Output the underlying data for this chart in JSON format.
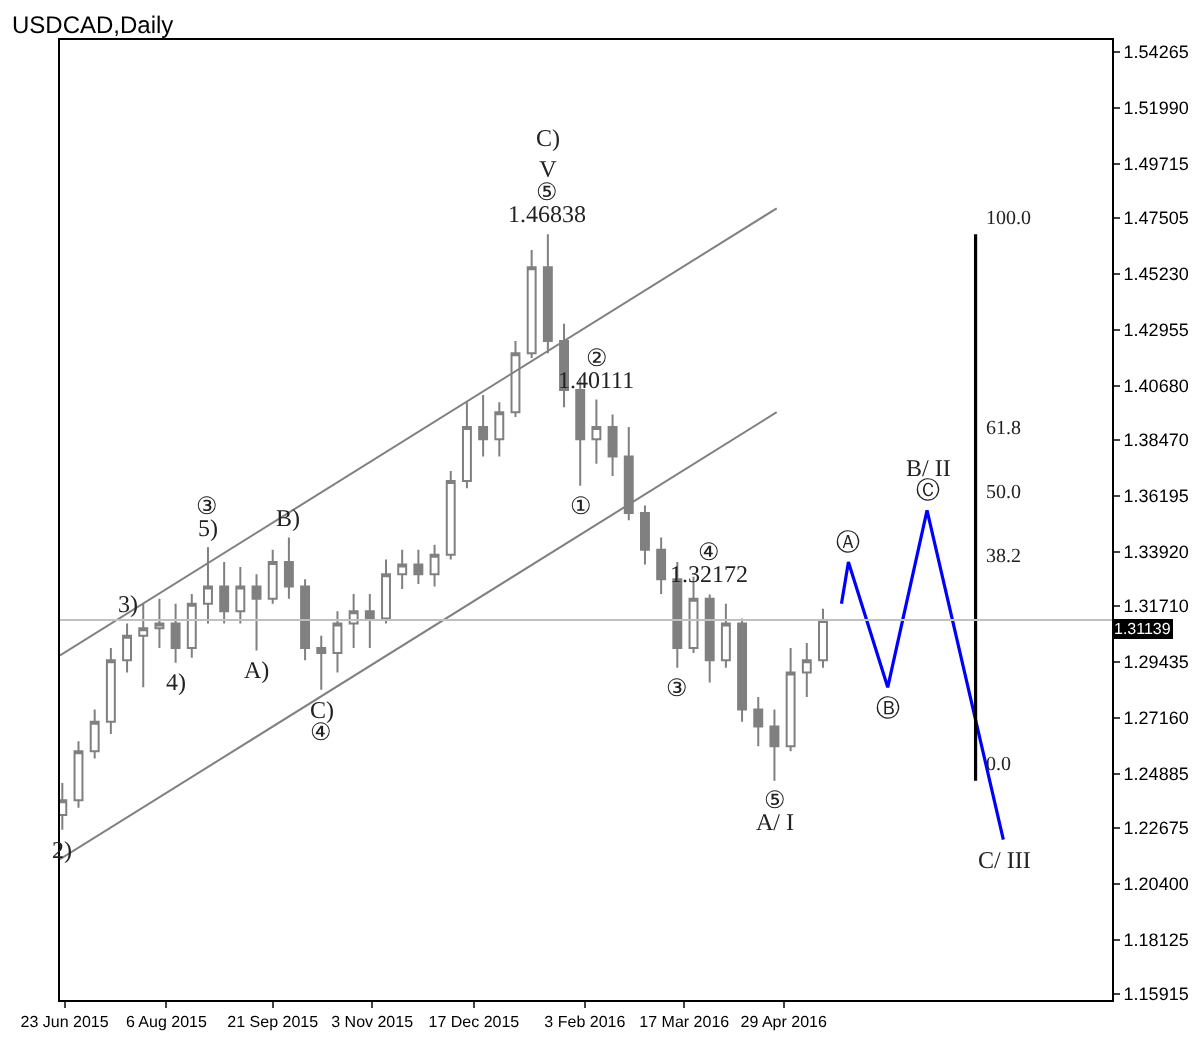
{
  "chart_data": {
    "type": "candlestick",
    "title": "USDCAD,Daily",
    "color": "#808080",
    "grid": false,
    "x": [
      "2015-06-22",
      "2015-06-29",
      "2015-07-06",
      "2015-07-13",
      "2015-07-20",
      "2015-07-27",
      "2015-08-03",
      "2015-08-10",
      "2015-08-17",
      "2015-08-24",
      "2015-08-31",
      "2015-09-07",
      "2015-09-14",
      "2015-09-21",
      "2015-09-28",
      "2015-10-05",
      "2015-10-12",
      "2015-10-19",
      "2015-10-26",
      "2015-11-02",
      "2015-11-09",
      "2015-11-16",
      "2015-11-23",
      "2015-11-30",
      "2015-12-07",
      "2015-12-14",
      "2015-12-21",
      "2015-12-28",
      "2016-01-04",
      "2016-01-11",
      "2016-01-18",
      "2016-01-25",
      "2016-02-01",
      "2016-02-08",
      "2016-02-15",
      "2016-02-22",
      "2016-02-29",
      "2016-03-07",
      "2016-03-14",
      "2016-03-21",
      "2016-03-28",
      "2016-04-04",
      "2016-04-11",
      "2016-04-18",
      "2016-04-25",
      "2016-05-02",
      "2016-05-09",
      "2016-05-16"
    ],
    "ohlc": [
      [
        1.232,
        1.245,
        1.226,
        1.238
      ],
      [
        1.238,
        1.262,
        1.235,
        1.258
      ],
      [
        1.258,
        1.275,
        1.255,
        1.27
      ],
      [
        1.27,
        1.3,
        1.265,
        1.295
      ],
      [
        1.295,
        1.31,
        1.29,
        1.305
      ],
      [
        1.305,
        1.318,
        1.284,
        1.308
      ],
      [
        1.308,
        1.32,
        1.3,
        1.31
      ],
      [
        1.31,
        1.318,
        1.294,
        1.3
      ],
      [
        1.3,
        1.322,
        1.296,
        1.318
      ],
      [
        1.318,
        1.341,
        1.31,
        1.325
      ],
      [
        1.325,
        1.335,
        1.31,
        1.315
      ],
      [
        1.315,
        1.333,
        1.31,
        1.325
      ],
      [
        1.325,
        1.33,
        1.299,
        1.32
      ],
      [
        1.32,
        1.34,
        1.318,
        1.335
      ],
      [
        1.335,
        1.345,
        1.32,
        1.325
      ],
      [
        1.325,
        1.328,
        1.295,
        1.3
      ],
      [
        1.3,
        1.305,
        1.283,
        1.298
      ],
      [
        1.298,
        1.315,
        1.29,
        1.31
      ],
      [
        1.31,
        1.322,
        1.3,
        1.315
      ],
      [
        1.315,
        1.322,
        1.3,
        1.312
      ],
      [
        1.312,
        1.336,
        1.31,
        1.33
      ],
      [
        1.33,
        1.34,
        1.324,
        1.334
      ],
      [
        1.334,
        1.34,
        1.326,
        1.33
      ],
      [
        1.33,
        1.342,
        1.325,
        1.338
      ],
      [
        1.338,
        1.372,
        1.336,
        1.368
      ],
      [
        1.368,
        1.4,
        1.365,
        1.39
      ],
      [
        1.39,
        1.403,
        1.378,
        1.385
      ],
      [
        1.385,
        1.4,
        1.378,
        1.396
      ],
      [
        1.396,
        1.425,
        1.394,
        1.42
      ],
      [
        1.42,
        1.462,
        1.418,
        1.455
      ],
      [
        1.455,
        1.46838,
        1.42,
        1.425
      ],
      [
        1.425,
        1.432,
        1.398,
        1.405
      ],
      [
        1.405,
        1.41,
        1.366,
        1.385
      ],
      [
        1.385,
        1.40111,
        1.375,
        1.39
      ],
      [
        1.39,
        1.395,
        1.37,
        1.378
      ],
      [
        1.378,
        1.39,
        1.352,
        1.355
      ],
      [
        1.355,
        1.358,
        1.334,
        1.34
      ],
      [
        1.34,
        1.345,
        1.322,
        1.328
      ],
      [
        1.328,
        1.335,
        1.292,
        1.3
      ],
      [
        1.3,
        1.329,
        1.298,
        1.32
      ],
      [
        1.32,
        1.32172,
        1.286,
        1.295
      ],
      [
        1.295,
        1.318,
        1.292,
        1.31
      ],
      [
        1.31,
        1.312,
        1.27,
        1.275
      ],
      [
        1.275,
        1.28,
        1.26,
        1.268
      ],
      [
        1.268,
        1.275,
        1.246,
        1.26
      ],
      [
        1.26,
        1.3,
        1.258,
        1.29
      ],
      [
        1.29,
        1.302,
        1.28,
        1.295
      ],
      [
        1.295,
        1.316,
        1.292,
        1.31139
      ]
    ],
    "series": [
      {
        "type": "line",
        "color": "#808080",
        "x": [
          "2015-06-21",
          "2016-04-26"
        ],
        "values": [
          1.297,
          1.479
        ]
      },
      {
        "type": "line",
        "color": "#808080",
        "x": [
          "2015-06-21",
          "2016-04-26"
        ],
        "values": [
          1.214,
          1.396
        ]
      },
      {
        "type": "line",
        "color": "#0000ff",
        "x": [
          "2016-05-24",
          "2016-05-27",
          "2016-06-13",
          "2016-06-30",
          "2016-08-02"
        ],
        "values": [
          1.318,
          1.335,
          1.284,
          1.356,
          1.222
        ]
      },
      {
        "type": "line",
        "color": "#000000",
        "x": [
          "2016-07-21",
          "2016-07-21",
          "2016-07-21",
          "2016-07-21",
          "2016-07-21"
        ],
        "values": [
          1.46838,
          1.3834,
          1.3572,
          1.331,
          1.246
        ]
      }
    ],
    "annotations": [
      {
        "text": "1.46838",
        "x": "2016-01-18",
        "y": 1.46838
      },
      {
        "text": "⑤",
        "x": "2016-01-18",
        "y": 1.46838
      },
      {
        "text": "C)\nV",
        "x": "2016-01-18",
        "y": 1.46838
      },
      {
        "text": "1.40111",
        "x": "2016-02-08",
        "y": 1.40111
      },
      {
        "text": "②",
        "x": "2016-02-08",
        "y": 1.40111
      },
      {
        "text": "①",
        "x": "2016-02-01",
        "y": 1.366
      },
      {
        "text": "1.32172",
        "x": "2016-03-28",
        "y": 1.32172
      },
      {
        "text": "④",
        "x": "2016-03-28",
        "y": 1.32172
      },
      {
        "text": "③",
        "x": "2016-03-14",
        "y": 1.292
      },
      {
        "text": "⑤",
        "x": "2016-04-25",
        "y": 1.246
      },
      {
        "text": "A/ I",
        "x": "2016-04-25",
        "y": 1.246
      },
      {
        "text": "2)",
        "x": "2015-06-22",
        "y": 1.226
      },
      {
        "text": "3)",
        "x": "2015-07-20",
        "y": 1.31
      },
      {
        "text": "5)",
        "x": "2015-08-24",
        "y": 1.341
      },
      {
        "text": "③",
        "x": "2015-08-24",
        "y": 1.341
      },
      {
        "text": "4)",
        "x": "2015-08-10",
        "y": 1.294
      },
      {
        "text": "B)",
        "x": "2015-09-28",
        "y": 1.345
      },
      {
        "text": "A)",
        "x": "2015-09-14",
        "y": 1.299
      },
      {
        "text": "C)",
        "x": "2015-10-12",
        "y": 1.283
      },
      {
        "text": "④",
        "x": "2015-10-12",
        "y": 1.283
      },
      {
        "text": "Ⓐ",
        "x": "2016-05-27",
        "y": 1.335
      },
      {
        "text": "Ⓑ",
        "x": "2016-06-13",
        "y": 1.284
      },
      {
        "text": "Ⓒ",
        "x": "2016-06-30",
        "y": 1.356
      },
      {
        "text": "B/ II",
        "x": "2016-06-30",
        "y": 1.356
      },
      {
        "text": "C/ III",
        "x": "2016-08-02",
        "y": 1.222
      },
      {
        "text": "100.0",
        "x": "2016-07-21",
        "y": 1.46838
      },
      {
        "text": "61.8",
        "x": "2016-07-21",
        "y": 1.3834
      },
      {
        "text": "50.0",
        "x": "2016-07-21",
        "y": 1.3572
      },
      {
        "text": "38.2",
        "x": "2016-07-21",
        "y": 1.331
      },
      {
        "text": "0.0",
        "x": "2016-07-21",
        "y": 1.246
      }
    ],
    "ref_lines": [
      {
        "axis": "y",
        "value": 1.31139,
        "label": "1.31139",
        "color": "#c0c0c0"
      }
    ],
    "xlim": [
      "2015-06-21",
      "2016-09-18"
    ],
    "xticks": [
      {
        "value": "2015-06-23",
        "label": "23 Jun 2015"
      },
      {
        "value": "2015-08-06",
        "label": "6 Aug 2015"
      },
      {
        "value": "2015-09-21",
        "label": "21 Sep 2015"
      },
      {
        "value": "2015-11-03",
        "label": "3 Nov 2015"
      },
      {
        "value": "2015-12-17",
        "label": "17 Dec 2015"
      },
      {
        "value": "2016-02-03",
        "label": "3 Feb 2016"
      },
      {
        "value": "2016-03-17",
        "label": "17 Mar 2016"
      },
      {
        "value": "2016-04-29",
        "label": "29 Apr 2016"
      }
    ],
    "ylim": [
      1.1567,
      1.5475
    ],
    "yticks": [
      1.54265,
      {
        "value": 1.5199,
        "label": "1.51990"
      },
      1.49715,
      1.47505,
      {
        "value": 1.4523,
        "label": "1.45230"
      },
      1.42955,
      {
        "value": 1.4068,
        "label": "1.40680"
      },
      {
        "value": 1.3847,
        "label": "1.38470"
      },
      1.36195,
      {
        "value": 1.3392,
        "label": "1.33920"
      },
      {
        "value": 1.3171,
        "label": "1.31710"
      },
      1.29435,
      {
        "value": 1.2716,
        "label": "1.27160"
      },
      1.24885,
      1.22675,
      {
        "value": 1.204,
        "label": "1.20400"
      },
      1.18125,
      1.15915
    ]
  }
}
